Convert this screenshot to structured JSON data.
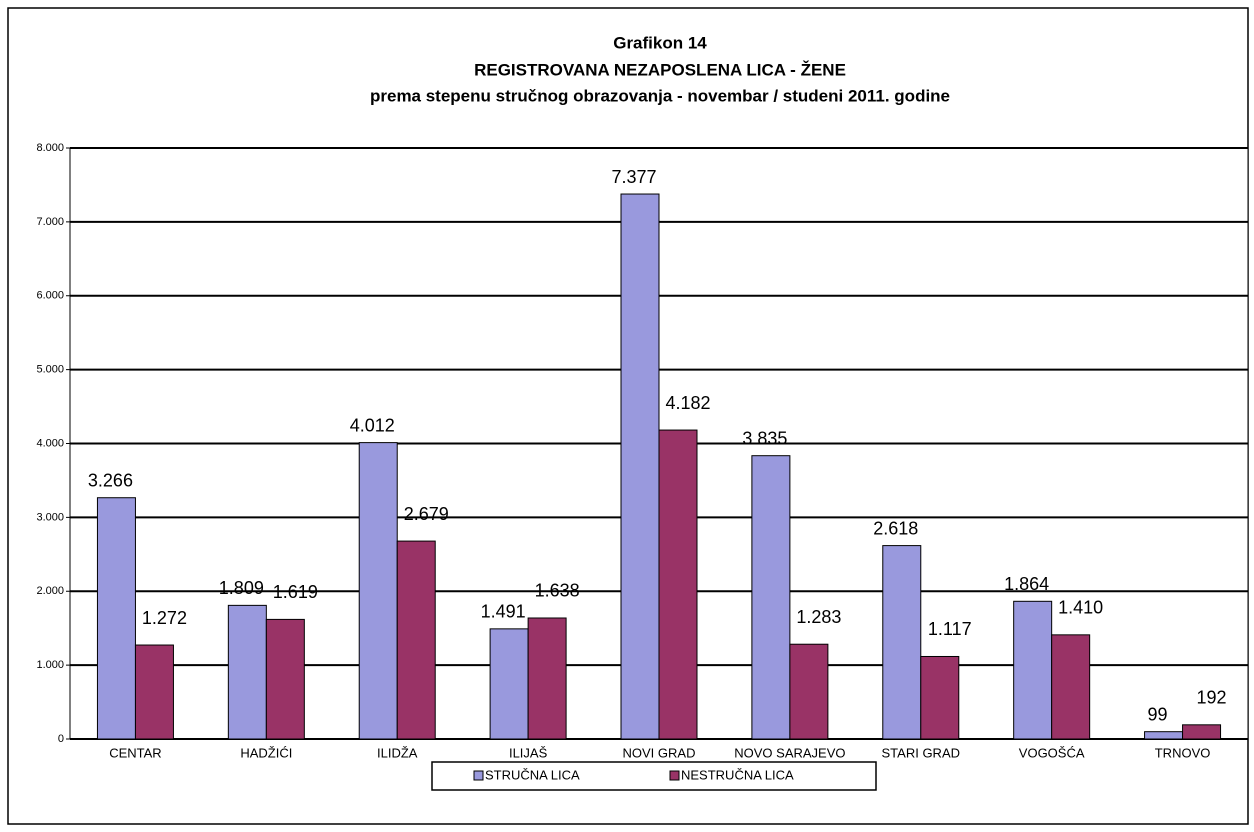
{
  "chart_data": {
    "type": "bar",
    "title": "Grafikon 14",
    "subtitle": "REGISTROVANA NEZAPOSLENA LICA - ŽENE",
    "subtitle2": "prema stepenu stručnog obrazovanja - novembar / studeni  2011. godine",
    "categories": [
      "CENTAR",
      "HADŽIĆI",
      "ILIDŽA",
      "ILIJAŠ",
      "NOVI GRAD",
      "NOVO SARAJEVO",
      "STARI GRAD",
      "VOGOŠĆA",
      "TRNOVO"
    ],
    "series": [
      {
        "name": "STRUČNA LICA",
        "color": "#9999dd",
        "values": [
          3266,
          1809,
          4012,
          1491,
          7377,
          3835,
          2618,
          1864,
          99
        ],
        "value_labels": [
          "3.266",
          "1.809",
          "4.012",
          "1.491",
          "7.377",
          "3.835",
          "2.618",
          "1.864",
          "99"
        ]
      },
      {
        "name": "NESTRUČNA LICA",
        "color": "#993366",
        "values": [
          1272,
          1619,
          2679,
          1638,
          4182,
          1283,
          1117,
          1410,
          192
        ],
        "value_labels": [
          "1.272",
          "1.619",
          "2.679",
          "1.638",
          "4.182",
          "1.283",
          "1.117",
          "1.410",
          "192"
        ]
      }
    ],
    "ylim": [
      0,
      8000
    ],
    "yticks": [
      0,
      {
        "value": 1000,
        "label": "1.000"
      },
      {
        "value": 2000,
        "label": "2.000"
      },
      {
        "value": 3000,
        "label": "3.000"
      },
      {
        "value": 4000,
        "label": "4.000"
      },
      {
        "value": 5000,
        "label": "5.000"
      },
      {
        "value": 6000,
        "label": "6.000"
      },
      {
        "value": 7000,
        "label": "7.000"
      },
      {
        "value": 8000,
        "label": "8.000"
      }
    ],
    "grid": true,
    "legend": "bottom"
  }
}
